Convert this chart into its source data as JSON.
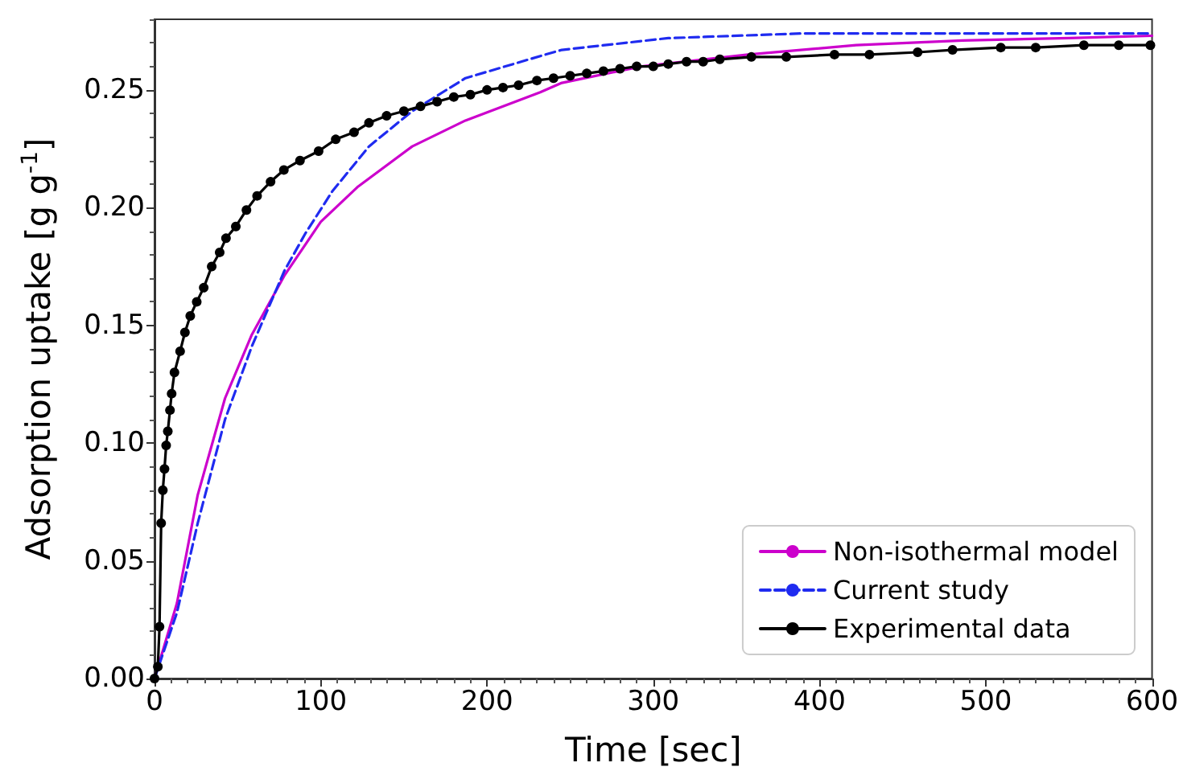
{
  "chart_data": {
    "type": "line",
    "xlabel": "Time [sec]",
    "ylabel": "Adsorption uptake [g g$^{-1}$]",
    "xlim": [
      0,
      600
    ],
    "xticks": [
      0,
      100,
      200,
      300,
      400,
      500,
      600
    ],
    "ylim": [
      0,
      0.28
    ],
    "yticks": [
      {
        "value": 0,
        "label": "0.00"
      },
      {
        "value": 0.05,
        "label": "0.05"
      },
      {
        "value": 0.1,
        "label": "0.10"
      },
      {
        "value": 0.15,
        "label": "0.15"
      },
      {
        "value": 0.2,
        "label": "0.20"
      },
      {
        "value": 0.25,
        "label": "0.25"
      }
    ],
    "grid": false,
    "legend": "bottom right",
    "series": [
      {
        "name": "Non-isothermal model",
        "color": "#cc00cc",
        "line_style": "solid",
        "marker": "none",
        "x": [
          0,
          13.5,
          26,
          42.4,
          58.5,
          78,
          100,
          122.5,
          155,
          187,
          232,
          245,
          293,
          357,
          422,
          486,
          550,
          600
        ],
        "values": [
          0,
          0.032,
          0.078,
          0.119,
          0.146,
          0.171,
          0.194,
          0.209,
          0.226,
          0.237,
          0.249,
          0.253,
          0.26,
          0.265,
          0.269,
          0.271,
          0.272,
          0.273
        ]
      },
      {
        "name": "Current study",
        "color": "#1f2bf0",
        "line_style": "dashed",
        "marker": "none",
        "x": [
          0,
          13.5,
          26,
          42.4,
          58.5,
          78,
          90.7,
          107,
          129,
          155,
          187,
          235,
          245,
          309,
          390,
          500,
          600
        ],
        "values": [
          0,
          0.028,
          0.066,
          0.11,
          0.141,
          0.173,
          0.189,
          0.207,
          0.226,
          0.241,
          0.255,
          0.265,
          0.267,
          0.272,
          0.274,
          0.274,
          0.274
        ]
      },
      {
        "name": "Experimental data",
        "color": "#000000",
        "line_style": "solid",
        "marker": "circle",
        "x": [
          0,
          2,
          3,
          4,
          5,
          6,
          7,
          8,
          9.3,
          10.3,
          12,
          15.4,
          18.3,
          21.5,
          25.4,
          29.6,
          34.4,
          39.2,
          43,
          48.9,
          55.3,
          61.7,
          69.8,
          77.8,
          87.5,
          98.7,
          109,
          120,
          129,
          139.6,
          150,
          160,
          170,
          180,
          190,
          200,
          209.6,
          219,
          230,
          240,
          250,
          260,
          270,
          280,
          290,
          300,
          309,
          320,
          330,
          340,
          359,
          380,
          409,
          430,
          459,
          480,
          509,
          530,
          559,
          580,
          599
        ],
        "values": [
          0,
          0.005,
          0.022,
          0.066,
          0.08,
          0.089,
          0.099,
          0.105,
          0.114,
          0.121,
          0.13,
          0.139,
          0.147,
          0.154,
          0.16,
          0.166,
          0.175,
          0.181,
          0.187,
          0.192,
          0.199,
          0.205,
          0.211,
          0.216,
          0.22,
          0.224,
          0.229,
          0.232,
          0.236,
          0.239,
          0.241,
          0.243,
          0.245,
          0.247,
          0.248,
          0.25,
          0.251,
          0.252,
          0.254,
          0.255,
          0.256,
          0.257,
          0.258,
          0.259,
          0.26,
          0.26,
          0.261,
          0.262,
          0.262,
          0.263,
          0.264,
          0.264,
          0.265,
          0.265,
          0.266,
          0.267,
          0.268,
          0.268,
          0.269,
          0.269,
          0.269
        ]
      }
    ]
  }
}
